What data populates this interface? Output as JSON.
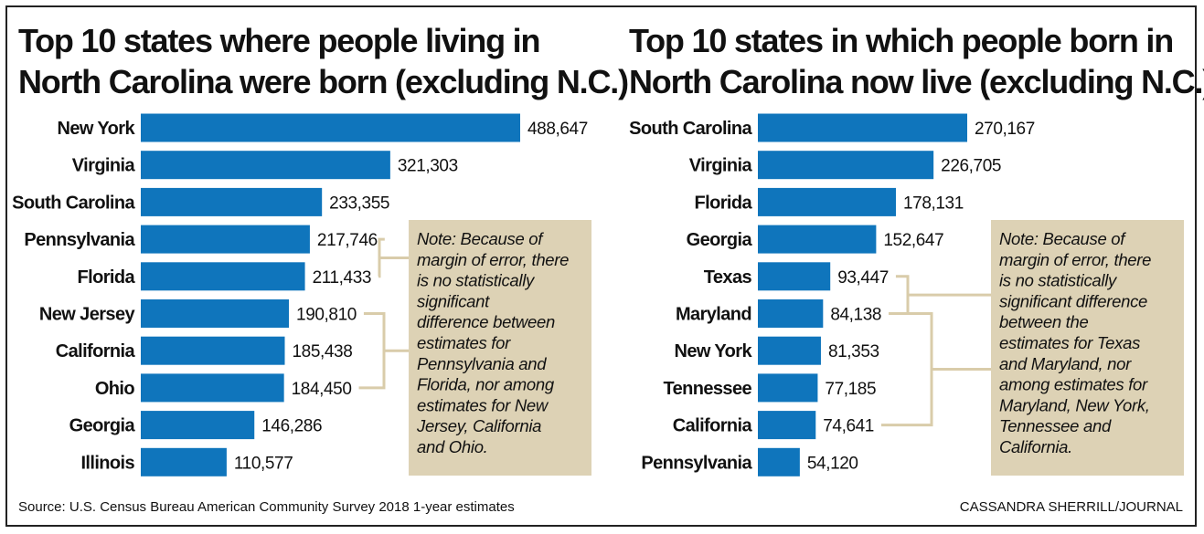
{
  "colors": {
    "bar": "#0f75bc",
    "note_box": "#ddd2b5",
    "bracket": "#d9ccaa",
    "border": "#222222"
  },
  "chart_data": [
    {
      "type": "bar",
      "orientation": "horizontal",
      "title_lines": [
        "Top 10 states where people living in",
        "North Carolina were born (excluding N.C.)"
      ],
      "categories": [
        "New York",
        "Virginia",
        "South Carolina",
        "Pennsylvania",
        "Florida",
        "New Jersey",
        "California",
        "Ohio",
        "Georgia",
        "Illinois"
      ],
      "values": [
        488647,
        321303,
        233355,
        217746,
        211433,
        190810,
        185438,
        184450,
        146286,
        110577
      ],
      "value_labels": [
        "488,647",
        "321,303",
        "233,355",
        "217,746",
        "211,433",
        "190,810",
        "185,438",
        "184,450",
        "146,286",
        "110,577"
      ],
      "note_lines": [
        "Note: Because of",
        "margin of error, there",
        "is no statistically",
        "significant",
        "difference between",
        "estimates for",
        "Pennsylvania and",
        "Florida, nor among",
        "estimates for New",
        "Jersey, California",
        "and Ohio."
      ],
      "brackets": [
        {
          "from": "Pennsylvania",
          "to": "Florida"
        },
        {
          "from": "New Jersey",
          "to": "Ohio"
        }
      ]
    },
    {
      "type": "bar",
      "orientation": "horizontal",
      "title_lines": [
        "Top 10 states in which people born in",
        "North Carolina now live (excluding N.C.)"
      ],
      "categories": [
        "South Carolina",
        "Virginia",
        "Florida",
        "Georgia",
        "Texas",
        "Maryland",
        "New York",
        "Tennessee",
        "California",
        "Pennsylvania"
      ],
      "values": [
        270167,
        226705,
        178131,
        152647,
        93447,
        84138,
        81353,
        77185,
        74641,
        54120
      ],
      "value_labels": [
        "270,167",
        "226,705",
        "178,131",
        "152,647",
        "93,447",
        "84,138",
        "81,353",
        "77,185",
        "74,641",
        "54,120"
      ],
      "note_lines": [
        "Note: Because of",
        "margin of error, there",
        "is no statistically",
        "significant difference",
        "between the",
        "estimates for Texas",
        "and Maryland, nor",
        "among estimates for",
        "Maryland, New York,",
        "Tennessee and",
        "California."
      ],
      "brackets": [
        {
          "from": "Texas",
          "to": "Maryland"
        },
        {
          "from": "Maryland",
          "to": "California"
        }
      ]
    }
  ],
  "footer": {
    "source": "Source: U.S. Census Bureau American Community Survey 2018 1-year estimates",
    "credit": "CASSANDRA SHERRILL/JOURNAL"
  }
}
